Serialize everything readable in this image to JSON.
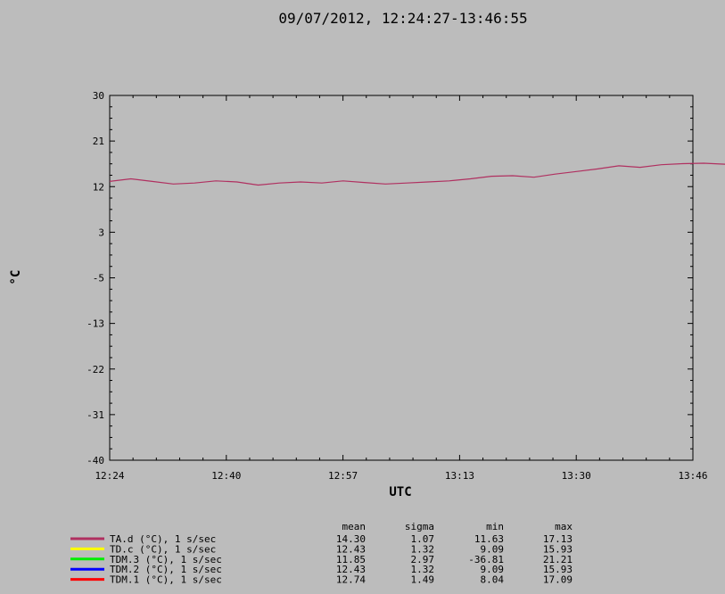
{
  "chart_data": {
    "type": "line",
    "title": "09/07/2012, 12:24:27-13:46:55",
    "xlabel": "UTC",
    "ylabel": "°C",
    "ylim": [
      -40,
      30
    ],
    "yticks": [
      "30",
      "21",
      "12",
      "3",
      "-5",
      "-13",
      "-22",
      "-31",
      "-40"
    ],
    "xticks": [
      "12:24",
      "12:40",
      "12:57",
      "13:13",
      "13:30",
      "13:46"
    ],
    "grid": false,
    "x_start": "12:24:27",
    "x_end": "13:46:55",
    "series": [
      {
        "name": "TA.d (°C), 1 s/sec",
        "color": "#b03060",
        "points": [
          [
            0,
            13.5
          ],
          [
            3,
            14.0
          ],
          [
            6,
            13.5
          ],
          [
            9,
            13.0
          ],
          [
            12,
            13.2
          ],
          [
            15,
            13.6
          ],
          [
            18,
            13.4
          ],
          [
            21,
            12.8
          ],
          [
            24,
            13.2
          ],
          [
            27,
            13.4
          ],
          [
            30,
            13.2
          ],
          [
            33,
            13.6
          ],
          [
            36,
            13.3
          ],
          [
            39,
            13.0
          ],
          [
            42,
            13.2
          ],
          [
            45,
            13.4
          ],
          [
            48,
            13.6
          ],
          [
            51,
            14.0
          ],
          [
            54,
            14.5
          ],
          [
            57,
            14.6
          ],
          [
            60,
            14.3
          ],
          [
            63,
            14.9
          ],
          [
            66,
            15.4
          ],
          [
            69,
            15.9
          ],
          [
            72,
            16.5
          ],
          [
            75,
            16.2
          ],
          [
            78,
            16.7
          ],
          [
            81,
            16.9
          ],
          [
            84,
            17.0
          ],
          [
            87,
            16.8
          ],
          [
            90,
            16.3
          ],
          [
            93,
            16.6
          ],
          [
            96,
            15.8
          ],
          [
            99,
            16.5
          ],
          [
            102,
            16.0
          ],
          [
            105,
            15.3
          ],
          [
            108,
            15.6
          ],
          [
            111,
            15.0
          ],
          [
            114,
            14.6
          ],
          [
            117,
            14.9
          ],
          [
            120,
            14.4
          ],
          [
            123,
            14.0
          ],
          [
            126,
            13.8
          ],
          [
            129,
            14.2
          ],
          [
            132,
            13.6
          ],
          [
            135,
            13.3
          ],
          [
            138,
            13.4
          ],
          [
            141,
            13.2
          ],
          [
            144,
            13.5
          ],
          [
            147,
            13.3
          ],
          [
            150,
            13.0
          ],
          [
            153,
            12.9
          ],
          [
            156,
            13.2
          ],
          [
            159,
            13.6
          ],
          [
            162,
            13.8
          ],
          [
            165,
            14.0
          ],
          [
            168,
            13.8
          ],
          [
            171,
            13.5
          ],
          [
            174,
            13.6
          ],
          [
            177,
            13.4
          ],
          [
            180,
            13.0
          ],
          [
            183,
            13.2
          ],
          [
            186,
            13.4
          ],
          [
            189,
            13.8
          ],
          [
            192,
            14.2
          ],
          [
            195,
            14.0
          ],
          [
            198,
            13.9
          ],
          [
            201,
            14.6
          ],
          [
            204,
            15.3
          ],
          [
            207,
            15.5
          ],
          [
            210,
            15.0
          ],
          [
            213,
            15.3
          ],
          [
            216,
            15.9
          ],
          [
            219,
            16.2
          ],
          [
            222,
            16.5
          ],
          [
            225,
            16.0
          ],
          [
            228,
            16.6
          ],
          [
            231,
            16.9
          ],
          [
            234,
            17.1
          ],
          [
            237,
            16.6
          ],
          [
            240,
            16.8
          ],
          [
            243,
            17.0
          ],
          [
            246,
            16.7
          ],
          [
            249,
            16.5
          ],
          [
            252,
            16.9
          ],
          [
            255,
            17.1
          ],
          [
            258,
            16.6
          ],
          [
            261,
            16.2
          ],
          [
            264,
            16.3
          ],
          [
            267,
            16.8
          ],
          [
            270,
            17.0
          ],
          [
            273,
            16.6
          ],
          [
            276,
            16.4
          ],
          [
            279,
            16.0
          ],
          [
            282,
            15.8
          ],
          [
            285,
            15.4
          ],
          [
            288,
            15.1
          ],
          [
            291,
            14.7
          ],
          [
            294,
            14.9
          ],
          [
            297,
            14.6
          ],
          [
            300,
            14.2
          ],
          [
            303,
            14.4
          ],
          [
            306,
            14.0
          ],
          [
            309,
            13.6
          ],
          [
            312,
            13.3
          ],
          [
            315,
            13.6
          ],
          [
            318,
            13.4
          ],
          [
            321,
            13.0
          ],
          [
            324,
            12.9
          ],
          [
            327,
            13.2
          ],
          [
            330,
            13.4
          ],
          [
            333,
            13.5
          ],
          [
            336,
            13.4
          ],
          [
            339,
            12.8
          ],
          [
            342,
            12.9
          ],
          [
            345,
            12.6
          ],
          [
            348,
            12.8
          ],
          [
            351,
            13.2
          ],
          [
            354,
            13.0
          ],
          [
            357,
            13.6
          ],
          [
            360,
            13.4
          ],
          [
            363,
            13.1
          ],
          [
            366,
            12.8
          ],
          [
            369,
            13.0
          ],
          [
            372,
            13.5
          ],
          [
            375,
            13.0
          ],
          [
            378,
            13.6
          ],
          [
            381,
            14.0
          ],
          [
            384,
            13.4
          ],
          [
            387,
            13.8
          ],
          [
            390,
            13.5
          ],
          [
            393,
            14.0
          ],
          [
            396,
            14.2
          ],
          [
            399,
            14.5
          ],
          [
            402,
            14.4
          ]
        ]
      },
      {
        "name": "TD.c (°C), 1 s/sec",
        "color": "#ffff00",
        "points": []
      },
      {
        "name": "TDM.3 (°C), 1 s/sec",
        "color": "#00ee00",
        "points": []
      },
      {
        "name": "TDM.2 (°C), 1 s/sec",
        "color": "#0000ff",
        "points": []
      },
      {
        "name": "TDM.1 (°C), 1 s/sec",
        "color": "#ff0000",
        "points": []
      }
    ]
  },
  "stats": {
    "headers": {
      "mean": "mean",
      "sigma": "sigma",
      "min": "min",
      "max": "max"
    },
    "rows": [
      {
        "name": "TA.d (°C), 1 s/sec",
        "color": "#b03060",
        "mean": "14.30",
        "sigma": "1.07",
        "min": "11.63",
        "max": "17.13"
      },
      {
        "name": "TD.c (°C), 1 s/sec",
        "color": "#ffff00",
        "mean": "12.43",
        "sigma": "1.32",
        "min": "9.09",
        "max": "15.93"
      },
      {
        "name": "TDM.3 (°C), 1 s/sec",
        "color": "#00ee00",
        "mean": "11.85",
        "sigma": "2.97",
        "min": "-36.81",
        "max": "21.21"
      },
      {
        "name": "TDM.2 (°C), 1 s/sec",
        "color": "#0000ff",
        "mean": "12.43",
        "sigma": "1.32",
        "min": "9.09",
        "max": "15.93"
      },
      {
        "name": "TDM.1 (°C), 1 s/sec",
        "color": "#ff0000",
        "mean": "12.74",
        "sigma": "1.49",
        "min": "8.04",
        "max": "17.09"
      }
    ]
  }
}
